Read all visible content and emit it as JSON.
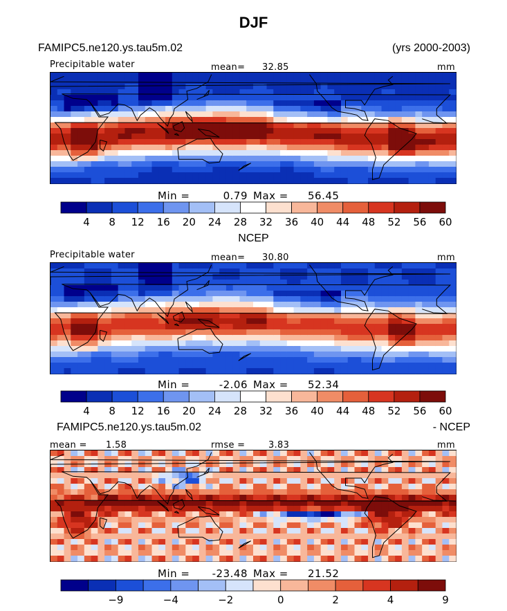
{
  "figure": {
    "title": "DJF",
    "case_name": "FAMIPC5.ne120.ys.tau5m.02",
    "years": "(yrs 2000-2003)",
    "obs_name": "NCEP",
    "diff_case_name": "FAMIPC5.ne120.ys.tau5m.02",
    "diff_obs_name": "- NCEP"
  },
  "colors": {
    "abs_scale": [
      "#00008b",
      "#0a2fb5",
      "#1c4fd8",
      "#3c6fea",
      "#6f95f0",
      "#a3bff6",
      "#d6e4fb",
      "#ffffff",
      "#fde0cf",
      "#f8b79a",
      "#f08c66",
      "#e5603b",
      "#d73520",
      "#b4200f",
      "#7d0d0a"
    ],
    "diff_scale": [
      "#00008b",
      "#0a2fb5",
      "#1c4fd8",
      "#3c6fea",
      "#6f95f0",
      "#a3bff6",
      "#d6e4fb",
      "#fde0cf",
      "#f8b79a",
      "#f08c66",
      "#e5603b",
      "#d73520",
      "#b4200f",
      "#7d0d0a"
    ],
    "coastline": "#000000"
  },
  "chart_data": [
    {
      "type": "heatmap",
      "panel": "model",
      "variable_label": "Precipitable water",
      "units": "mm",
      "mean_label": "mean=",
      "mean": "32.85",
      "min_label": "Min =",
      "min": "0.79",
      "max_label": "Max =",
      "max": "56.45",
      "colorbar_levels": [
        "4",
        "8",
        "12",
        "16",
        "20",
        "24",
        "28",
        "32",
        "36",
        "40",
        "44",
        "48",
        "52",
        "56",
        "60"
      ],
      "lon_range": [
        0,
        360
      ],
      "lat_range": [
        -60,
        60
      ],
      "itcz_peak_value": 56,
      "pole_value": 6
    },
    {
      "type": "heatmap",
      "panel": "obs",
      "variable_label": "Precipitable water",
      "units": "mm",
      "mean_label": "mean=",
      "mean": "30.80",
      "min_label": "Min =",
      "min": "-2.06",
      "max_label": "Max =",
      "max": "52.34",
      "colorbar_levels": [
        "4",
        "8",
        "12",
        "16",
        "20",
        "24",
        "28",
        "32",
        "36",
        "40",
        "44",
        "48",
        "52",
        "56",
        "60"
      ],
      "lon_range": [
        0,
        360
      ],
      "lat_range": [
        -60,
        60
      ],
      "itcz_peak_value": 50,
      "pole_value": 8
    },
    {
      "type": "heatmap",
      "panel": "difference",
      "units": "mm",
      "mean_label": "mean =",
      "mean": "1.58",
      "rmse_label": "rmse =",
      "rmse": "3.83",
      "min_label": "Min =",
      "min": "-23.48",
      "max_label": "Max =",
      "max": "21.52",
      "colorbar_labels": [
        {
          "slot": 2,
          "text": "−9"
        },
        {
          "slot": 4,
          "text": "−4"
        },
        {
          "slot": 6,
          "text": "−2"
        },
        {
          "slot": 8,
          "text": "0"
        },
        {
          "slot": 10,
          "text": "2"
        },
        {
          "slot": 12,
          "text": "4"
        },
        {
          "slot": 14,
          "text": "9"
        }
      ],
      "lon_range": [
        0,
        360
      ],
      "lat_range": [
        -60,
        60
      ]
    }
  ]
}
